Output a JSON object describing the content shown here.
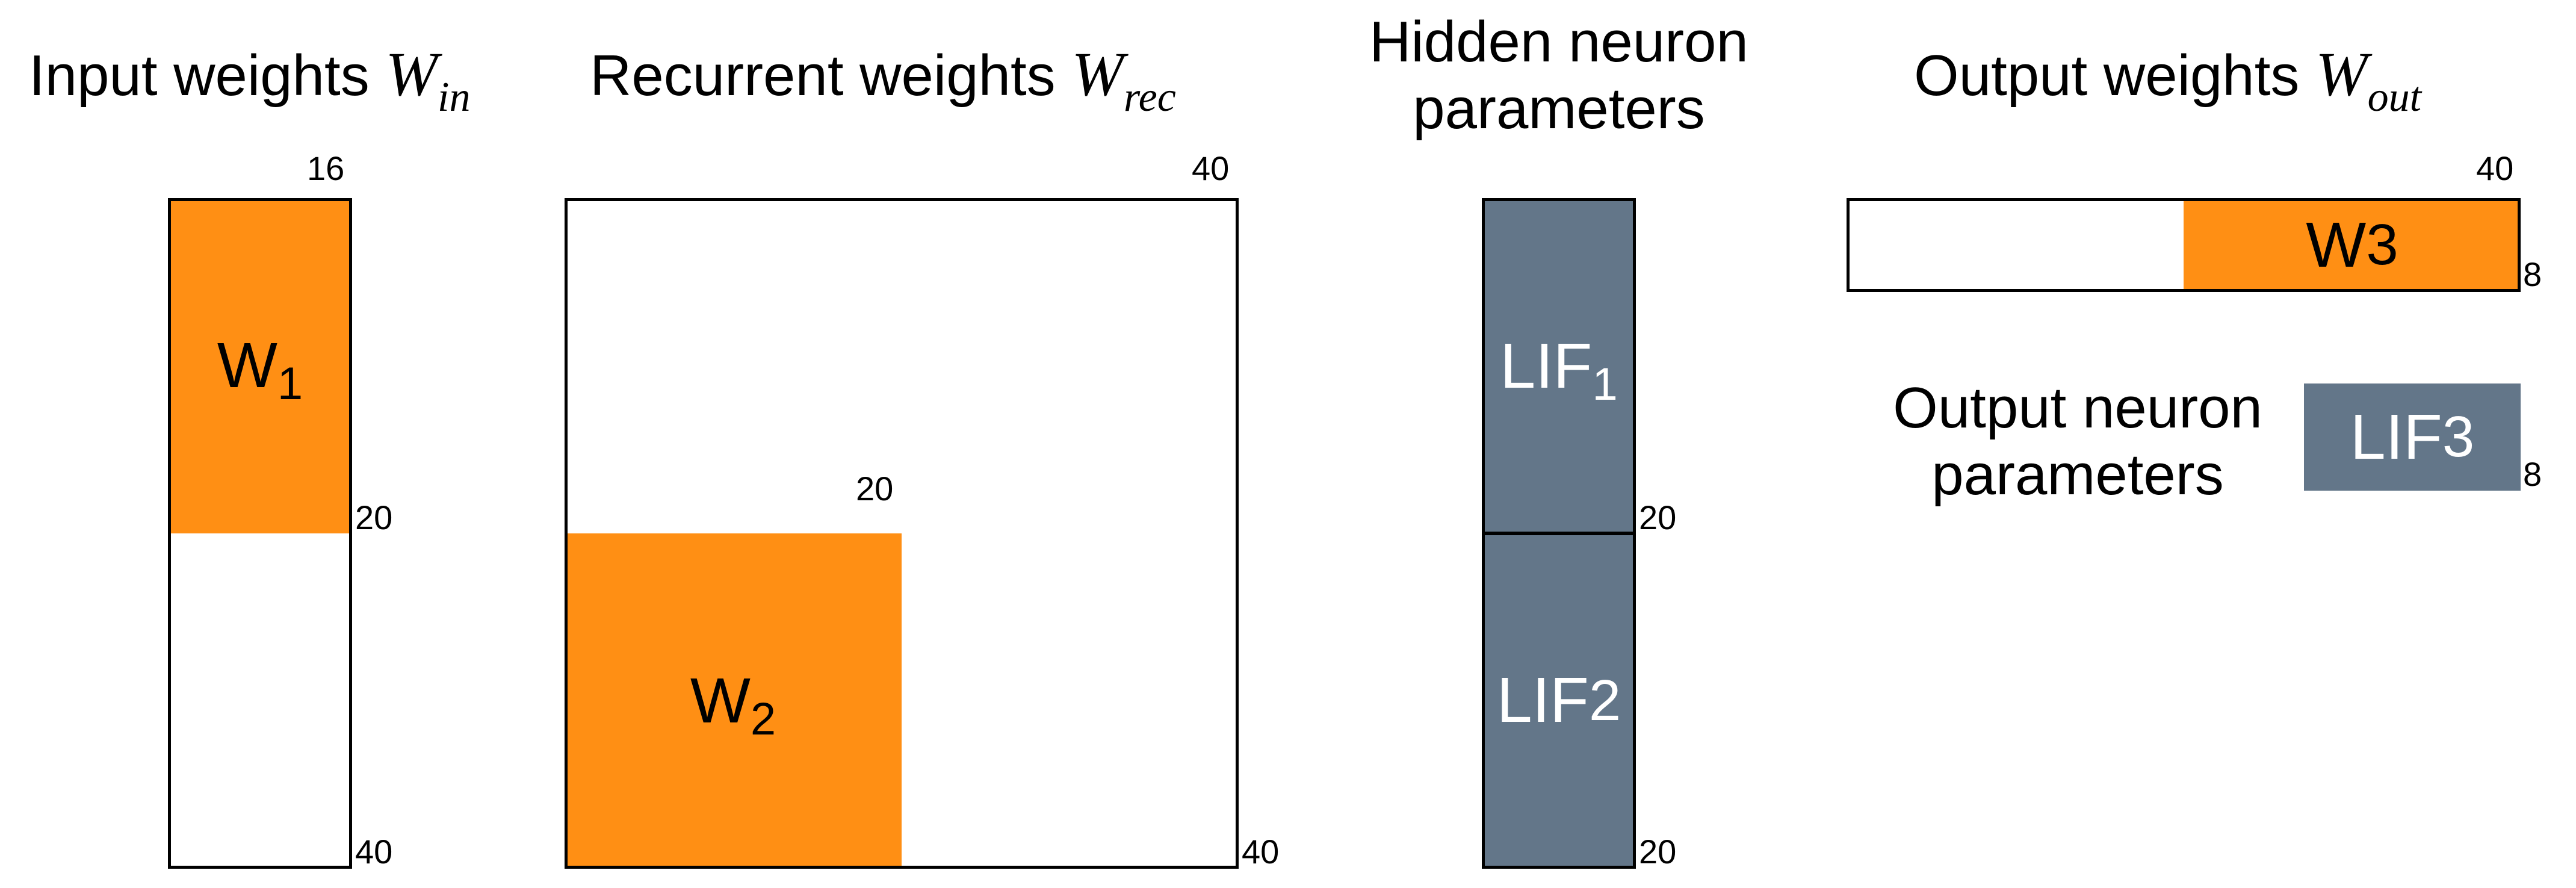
{
  "colors": {
    "weights": "#FF8F14",
    "params": "#637689",
    "outline": "#000000"
  },
  "titles": {
    "input": {
      "text": "Input weights ",
      "symbol": "W",
      "subscript": "in"
    },
    "recurrent": {
      "text": "Recurrent weights ",
      "symbol": "W",
      "subscript": "rec"
    },
    "hidden": {
      "line1": "Hidden neuron",
      "line2": "parameters"
    },
    "output": {
      "text": "Output weights ",
      "symbol": "W",
      "subscript": "out"
    },
    "output_neuron": {
      "line1": "Output neuron",
      "line2": "parameters"
    }
  },
  "blocks": {
    "w1": {
      "base": "W",
      "sub": "1"
    },
    "w2": {
      "base": "W",
      "sub": "2"
    },
    "w3": {
      "base": "W",
      "sub": "3"
    },
    "lif1": {
      "base": "LIF",
      "sub": "1"
    },
    "lif2": {
      "base": "LIF",
      "sub": "2"
    },
    "lif3": {
      "base": "LIF",
      "sub": "3"
    }
  },
  "dims": {
    "input_cols": "16",
    "input_mid": "20",
    "input_rows": "40",
    "rec_cols": "40",
    "rec_inner": "20",
    "rec_rows": "40",
    "hidden_mid": "20",
    "hidden_rows": "20",
    "out_cols": "40",
    "out_rows": "8",
    "lif3_rows": "8"
  }
}
